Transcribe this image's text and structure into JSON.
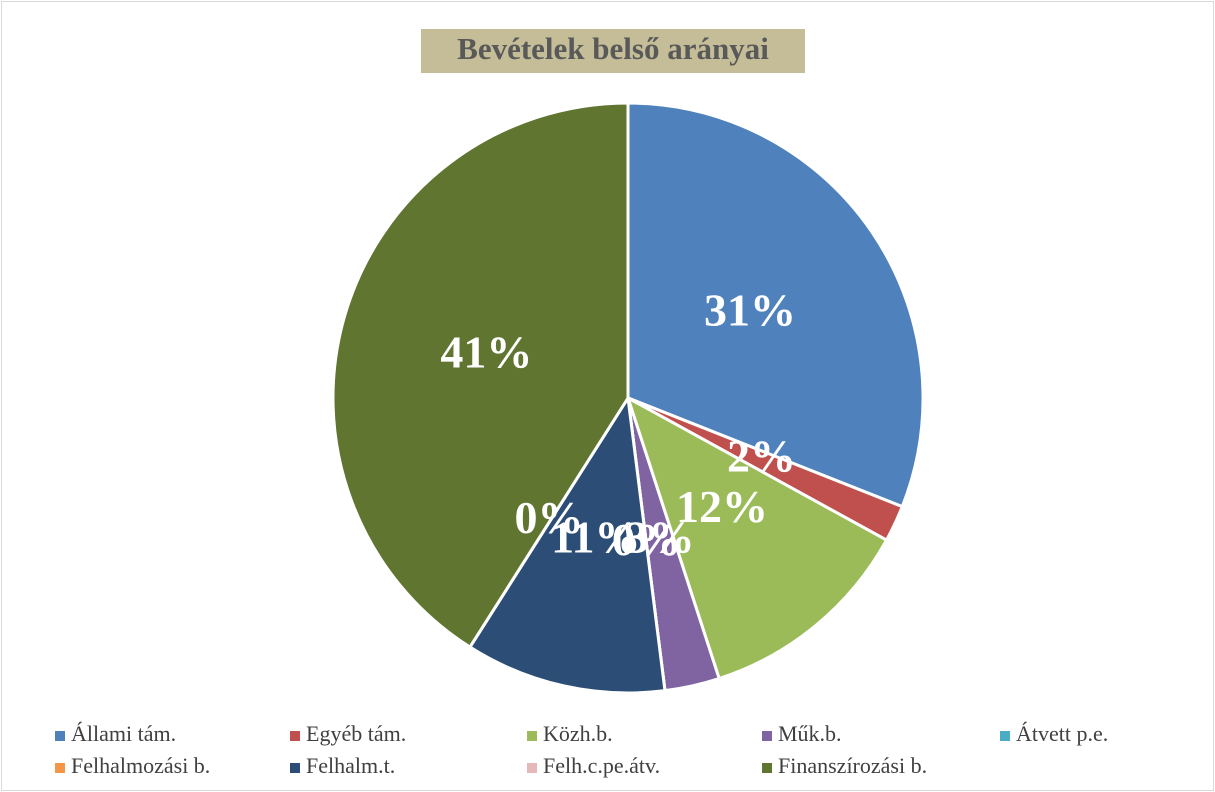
{
  "chart_data": {
    "type": "pie",
    "title": "Bevételek belső arányai",
    "categories": [
      "Állami tám.",
      "Egyéb tám.",
      "Közh.b.",
      "Műk.b.",
      "Átvett p.e.",
      "Felhalmozási b.",
      "Felhalm.t.",
      "Felh.c.pe.átv.",
      "Finanszírozási b."
    ],
    "values": [
      31,
      2,
      12,
      3,
      0,
      0,
      11,
      0,
      41
    ],
    "value_labels": [
      "31%",
      "2%",
      "12%",
      "3%",
      "0%",
      "0%",
      "11%",
      "0%",
      "41%"
    ],
    "colors": [
      "#4f81bd",
      "#c0504d",
      "#9bbb59",
      "#8064a2",
      "#4bacc6",
      "#f79646",
      "#2c4d75",
      "#e6b9b8",
      "#5f7530"
    ],
    "legend": "bottom"
  }
}
